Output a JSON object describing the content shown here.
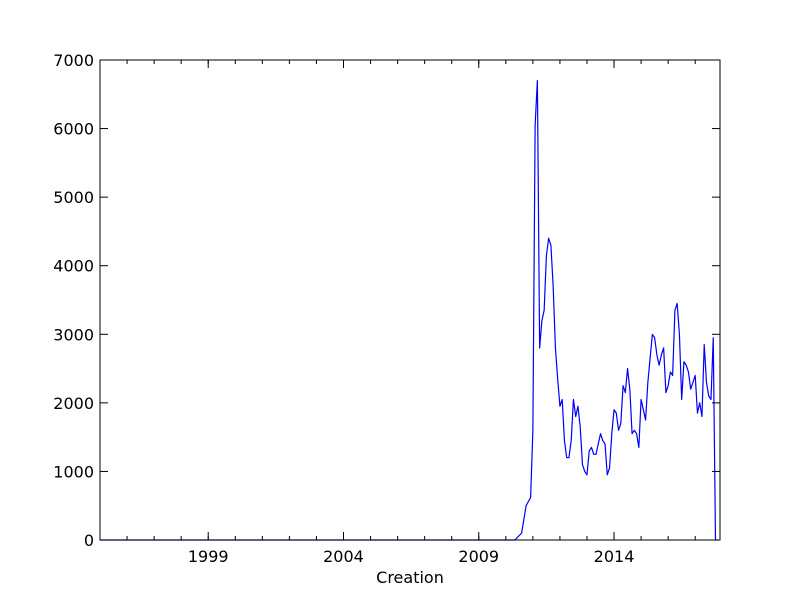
{
  "chart_data": {
    "type": "line",
    "xlabel": "Creation",
    "ylabel": "",
    "x_ticks": [
      "1999",
      "2004",
      "2009",
      "2014"
    ],
    "y_ticks": [
      "0",
      "1000",
      "2000",
      "3000",
      "4000",
      "5000",
      "6000",
      "7000"
    ],
    "xlim": [
      "1995-01",
      "2017-12"
    ],
    "ylim": [
      0,
      7000
    ],
    "grid": false,
    "legend": "none",
    "series": [
      {
        "color": "#0000ff",
        "x": [
          "1995-01",
          "2010-05",
          "2010-08",
          "2010-10",
          "2010-12",
          "2011-01",
          "2011-02",
          "2011-03",
          "2011-04",
          "2011-05",
          "2011-06",
          "2011-07",
          "2011-08",
          "2011-09",
          "2011-10",
          "2011-11",
          "2011-12",
          "2012-01",
          "2012-02",
          "2012-03",
          "2012-04",
          "2012-05",
          "2012-06",
          "2012-07",
          "2012-08",
          "2012-09",
          "2012-10",
          "2012-11",
          "2012-12",
          "2013-01",
          "2013-02",
          "2013-03",
          "2013-04",
          "2013-05",
          "2013-06",
          "2013-07",
          "2013-08",
          "2013-09",
          "2013-10",
          "2013-11",
          "2013-12",
          "2014-01",
          "2014-02",
          "2014-03",
          "2014-04",
          "2014-05",
          "2014-06",
          "2014-07",
          "2014-08",
          "2014-09",
          "2014-10",
          "2014-11",
          "2014-12",
          "2015-01",
          "2015-02",
          "2015-03",
          "2015-04",
          "2015-05",
          "2015-06",
          "2015-07",
          "2015-08",
          "2015-09",
          "2015-10",
          "2015-11",
          "2015-12",
          "2016-01",
          "2016-02",
          "2016-03",
          "2016-04",
          "2016-05",
          "2016-06",
          "2016-07",
          "2016-08",
          "2016-09",
          "2016-10",
          "2016-11",
          "2016-12",
          "2017-01",
          "2017-02",
          "2017-03",
          "2017-04",
          "2017-05",
          "2017-06",
          "2017-07",
          "2017-08",
          "2017-09",
          "2017-10",
          "2017-11"
        ],
        "values": [
          0,
          0,
          100,
          500,
          620,
          1600,
          6050,
          6700,
          2800,
          3200,
          3350,
          4150,
          4400,
          4300,
          3700,
          2800,
          2350,
          1950,
          2050,
          1450,
          1200,
          1200,
          1450,
          2050,
          1800,
          1950,
          1650,
          1100,
          1000,
          950,
          1300,
          1350,
          1250,
          1250,
          1400,
          1550,
          1450,
          1400,
          950,
          1050,
          1550,
          1900,
          1850,
          1600,
          1700,
          2250,
          2150,
          2500,
          2200,
          1550,
          1600,
          1550,
          1350,
          2050,
          1900,
          1750,
          2300,
          2650,
          3000,
          2950,
          2700,
          2550,
          2700,
          2800,
          2150,
          2250,
          2450,
          2400,
          3350,
          3450,
          3000,
          2050,
          2600,
          2550,
          2450,
          2200,
          2300,
          2400,
          1850,
          2000,
          1800,
          2850,
          2300,
          2100,
          2050,
          2950,
          0,
          0
        ]
      }
    ]
  }
}
